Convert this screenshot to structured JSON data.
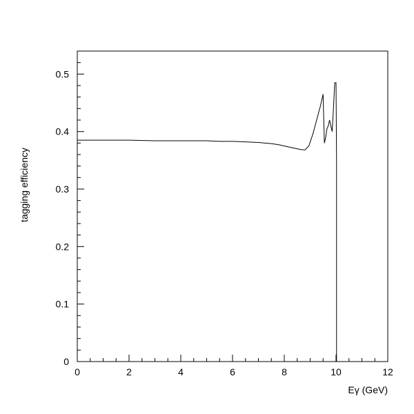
{
  "chart_data": {
    "type": "line",
    "title": "",
    "xlabel": "Eγ (GeV)",
    "ylabel": "tagging efficiency",
    "xlim": [
      0,
      12
    ],
    "ylim": [
      0,
      0.54
    ],
    "grid": false,
    "x_ticks": [
      0,
      2,
      4,
      6,
      8,
      10,
      12
    ],
    "x_tick_labels": [
      "0",
      "2",
      "4",
      "6",
      "8",
      "10",
      "12"
    ],
    "y_ticks": [
      0,
      0.1,
      0.2,
      0.3,
      0.4,
      0.5
    ],
    "y_tick_labels": [
      "0",
      "0.1",
      "0.2",
      "0.3",
      "0.4",
      "0.5"
    ],
    "series": [
      {
        "x": [
          0,
          1,
          2,
          3,
          4,
          5,
          5.5,
          6,
          6.5,
          7,
          7.5,
          7.8,
          8.1,
          8.4,
          8.6,
          8.8,
          8.95,
          9.1,
          9.25,
          9.4,
          9.5,
          9.55,
          9.6,
          9.65,
          9.7,
          9.75,
          9.8,
          9.85,
          9.9,
          9.95,
          10.0,
          10.02,
          10.02,
          10.04
        ],
        "y": [
          0.385,
          0.385,
          0.385,
          0.384,
          0.384,
          0.384,
          0.383,
          0.383,
          0.382,
          0.381,
          0.379,
          0.377,
          0.374,
          0.371,
          0.369,
          0.368,
          0.375,
          0.395,
          0.42,
          0.445,
          0.465,
          0.38,
          0.39,
          0.405,
          0.41,
          0.42,
          0.41,
          0.4,
          0.44,
          0.485,
          0.485,
          0.35,
          0.0,
          0.0
        ]
      }
    ]
  }
}
